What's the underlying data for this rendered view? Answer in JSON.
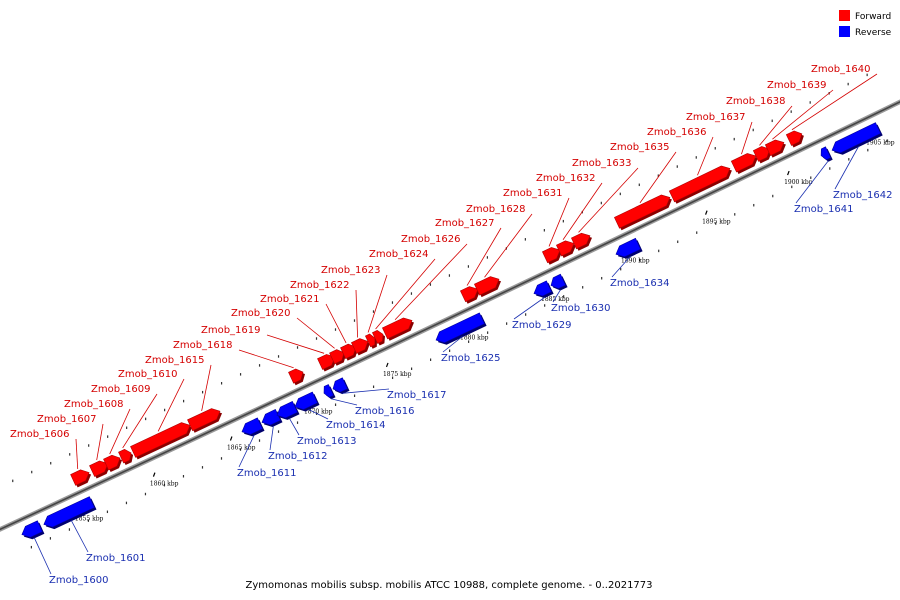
{
  "legend": {
    "items": [
      {
        "label": "Forward",
        "color": "#ff0000"
      },
      {
        "label": "Reverse",
        "color": "#0000ff"
      }
    ]
  },
  "caption": "Zymomonas mobilis subsp. mobilis ATCC 10988, complete genome. - 0..2021773",
  "colors": {
    "forward": "#ff0000",
    "reverse": "#0000ff",
    "forward_label": "#d40000",
    "reverse_label": "#1a2fb0"
  },
  "ticks": [
    {
      "label": "1855 kbp"
    },
    {
      "label": "1860 kbp"
    },
    {
      "label": "1865 kbp"
    },
    {
      "label": "1870 kbp"
    },
    {
      "label": "1875 kbp"
    },
    {
      "label": "1880 kbp"
    },
    {
      "label": "1885 kbp"
    },
    {
      "label": "1890 kbp"
    },
    {
      "label": "1895 kbp"
    },
    {
      "label": "1900 kbp"
    },
    {
      "label": "1905 kbp"
    }
  ],
  "genes": [
    {
      "name": "Zmob_1600",
      "strand": "reverse"
    },
    {
      "name": "Zmob_1601",
      "strand": "reverse"
    },
    {
      "name": "Zmob_1606",
      "strand": "forward"
    },
    {
      "name": "Zmob_1607",
      "strand": "forward"
    },
    {
      "name": "Zmob_1608",
      "strand": "forward"
    },
    {
      "name": "Zmob_1609",
      "strand": "forward"
    },
    {
      "name": "Zmob_1610",
      "strand": "forward"
    },
    {
      "name": "Zmob_1611",
      "strand": "reverse"
    },
    {
      "name": "Zmob_1612",
      "strand": "reverse"
    },
    {
      "name": "Zmob_1613",
      "strand": "reverse"
    },
    {
      "name": "Zmob_1614",
      "strand": "reverse"
    },
    {
      "name": "Zmob_1615",
      "strand": "forward"
    },
    {
      "name": "Zmob_1616",
      "strand": "reverse"
    },
    {
      "name": "Zmob_1617",
      "strand": "reverse"
    },
    {
      "name": "Zmob_1618",
      "strand": "forward"
    },
    {
      "name": "Zmob_1619",
      "strand": "forward"
    },
    {
      "name": "Zmob_1620",
      "strand": "forward"
    },
    {
      "name": "Zmob_1621",
      "strand": "forward"
    },
    {
      "name": "Zmob_1622",
      "strand": "forward"
    },
    {
      "name": "Zmob_1623",
      "strand": "forward"
    },
    {
      "name": "Zmob_1624",
      "strand": "forward"
    },
    {
      "name": "Zmob_1625",
      "strand": "reverse"
    },
    {
      "name": "Zmob_1626",
      "strand": "forward"
    },
    {
      "name": "Zmob_1627",
      "strand": "forward"
    },
    {
      "name": "Zmob_1628",
      "strand": "forward"
    },
    {
      "name": "Zmob_1629",
      "strand": "reverse"
    },
    {
      "name": "Zmob_1630",
      "strand": "reverse"
    },
    {
      "name": "Zmob_1631",
      "strand": "forward"
    },
    {
      "name": "Zmob_1632",
      "strand": "forward"
    },
    {
      "name": "Zmob_1633",
      "strand": "forward"
    },
    {
      "name": "Zmob_1634",
      "strand": "reverse"
    },
    {
      "name": "Zmob_1635",
      "strand": "forward"
    },
    {
      "name": "Zmob_1636",
      "strand": "forward"
    },
    {
      "name": "Zmob_1637",
      "strand": "forward"
    },
    {
      "name": "Zmob_1638",
      "strand": "forward"
    },
    {
      "name": "Zmob_1639",
      "strand": "forward"
    },
    {
      "name": "Zmob_1640",
      "strand": "forward"
    },
    {
      "name": "Zmob_1641",
      "strand": "reverse"
    },
    {
      "name": "Zmob_1642",
      "strand": "reverse"
    }
  ]
}
